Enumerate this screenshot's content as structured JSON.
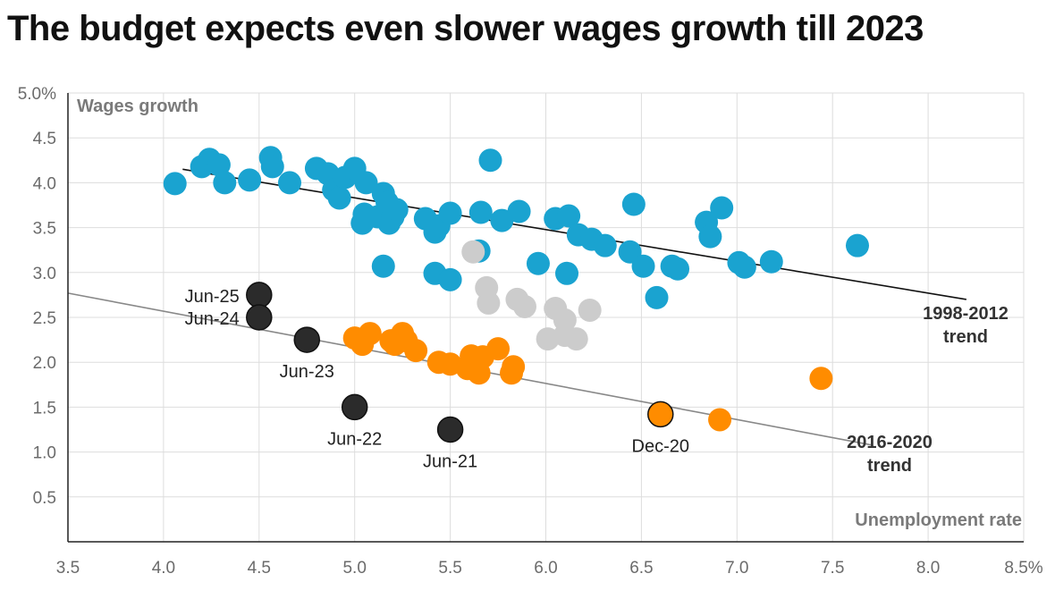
{
  "chart_data": {
    "type": "scatter",
    "title": "The budget expects even slower wages growth till 2023",
    "xlabel": "Unemployment rate",
    "ylabel": "Wages growth",
    "xlim": [
      3.5,
      8.5
    ],
    "ylim": [
      0,
      5.0
    ],
    "x_ticks": [
      "3.5",
      "4.0",
      "4.5",
      "5.0",
      "5.5",
      "6.0",
      "6.5",
      "7.0",
      "7.5",
      "8.0",
      "8.5%"
    ],
    "y_ticks": [
      "0.5",
      "1.0",
      "1.5",
      "2.0",
      "2.5",
      "3.0",
      "3.5",
      "4.0",
      "4.5",
      "5.0%"
    ],
    "grid": true,
    "series": [
      {
        "color": "#1aa3d0",
        "points": [
          [
            4.06,
            3.99
          ],
          [
            4.2,
            4.18
          ],
          [
            4.24,
            4.26
          ],
          [
            4.29,
            4.2
          ],
          [
            4.32,
            4.0
          ],
          [
            4.45,
            4.03
          ],
          [
            4.56,
            4.28
          ],
          [
            4.57,
            4.18
          ],
          [
            4.66,
            4.0
          ],
          [
            4.8,
            4.16
          ],
          [
            4.86,
            4.1
          ],
          [
            4.89,
            3.92
          ],
          [
            4.92,
            3.83
          ],
          [
            4.95,
            4.06
          ],
          [
            5.0,
            4.16
          ],
          [
            5.06,
            4.0
          ],
          [
            5.05,
            3.65
          ],
          [
            5.04,
            3.55
          ],
          [
            5.12,
            3.62
          ],
          [
            5.15,
            3.88
          ],
          [
            5.17,
            3.78
          ],
          [
            5.18,
            3.55
          ],
          [
            5.2,
            3.62
          ],
          [
            5.22,
            3.7
          ],
          [
            5.15,
            3.07
          ],
          [
            5.37,
            3.6
          ],
          [
            5.42,
            3.45
          ],
          [
            5.44,
            3.52
          ],
          [
            5.5,
            3.66
          ],
          [
            5.42,
            2.99
          ],
          [
            5.5,
            2.92
          ],
          [
            5.66,
            3.67
          ],
          [
            5.71,
            4.25
          ],
          [
            5.77,
            3.58
          ],
          [
            5.86,
            3.68
          ],
          [
            5.65,
            3.24
          ],
          [
            5.96,
            3.1
          ],
          [
            6.05,
            3.6
          ],
          [
            6.12,
            3.63
          ],
          [
            6.11,
            2.99
          ],
          [
            6.17,
            3.42
          ],
          [
            6.24,
            3.37
          ],
          [
            6.31,
            3.3
          ],
          [
            6.44,
            3.23
          ],
          [
            6.46,
            3.76
          ],
          [
            6.51,
            3.07
          ],
          [
            6.58,
            2.72
          ],
          [
            6.66,
            3.07
          ],
          [
            6.69,
            3.04
          ],
          [
            6.84,
            3.56
          ],
          [
            6.86,
            3.4
          ],
          [
            6.92,
            3.72
          ],
          [
            7.01,
            3.11
          ],
          [
            7.04,
            3.06
          ],
          [
            7.18,
            3.12
          ],
          [
            7.63,
            3.3
          ]
        ]
      },
      {
        "color": "#cccccc",
        "points": [
          [
            5.62,
            3.23
          ],
          [
            5.69,
            2.83
          ],
          [
            5.7,
            2.66
          ],
          [
            5.85,
            2.7
          ],
          [
            5.89,
            2.62
          ],
          [
            6.01,
            2.26
          ],
          [
            6.05,
            2.6
          ],
          [
            6.1,
            2.47
          ],
          [
            6.1,
            2.3
          ],
          [
            6.16,
            2.26
          ],
          [
            6.23,
            2.58
          ]
        ]
      },
      {
        "color": "#ff8c00",
        "points": [
          [
            5.0,
            2.27
          ],
          [
            5.04,
            2.2
          ],
          [
            5.08,
            2.32
          ],
          [
            5.19,
            2.24
          ],
          [
            5.21,
            2.2
          ],
          [
            5.25,
            2.32
          ],
          [
            5.27,
            2.24
          ],
          [
            5.32,
            2.13
          ],
          [
            5.44,
            2.0
          ],
          [
            5.5,
            1.98
          ],
          [
            5.59,
            1.93
          ],
          [
            5.61,
            2.07
          ],
          [
            5.62,
            2.0
          ],
          [
            5.65,
            1.88
          ],
          [
            5.67,
            2.06
          ],
          [
            5.75,
            2.15
          ],
          [
            5.82,
            1.88
          ],
          [
            5.83,
            1.95
          ],
          [
            6.91,
            1.36
          ],
          [
            7.44,
            1.82
          ]
        ]
      }
    ],
    "labeled_points": [
      {
        "label": "Jun-25",
        "x": 4.5,
        "y": 2.75,
        "color": "#2b2b2b"
      },
      {
        "label": "Jun-24",
        "x": 4.5,
        "y": 2.5,
        "color": "#2b2b2b"
      },
      {
        "label": "Jun-23",
        "x": 4.75,
        "y": 2.25,
        "color": "#2b2b2b"
      },
      {
        "label": "Jun-22",
        "x": 5.0,
        "y": 1.5,
        "color": "#2b2b2b"
      },
      {
        "label": "Jun-21",
        "x": 5.5,
        "y": 1.25,
        "color": "#2b2b2b"
      },
      {
        "label": "Dec-20",
        "x": 6.6,
        "y": 1.42,
        "color": "#ff8c00"
      }
    ],
    "trend_lines": [
      {
        "label": [
          "1998-2012",
          "trend"
        ],
        "color": "#111111",
        "from": [
          4.1,
          4.15
        ],
        "to": [
          8.2,
          2.7
        ]
      },
      {
        "label": [
          "2016-2020",
          "trend"
        ],
        "color": "#888888",
        "from": [
          3.5,
          2.77
        ],
        "to": [
          7.7,
          1.08
        ]
      }
    ]
  }
}
